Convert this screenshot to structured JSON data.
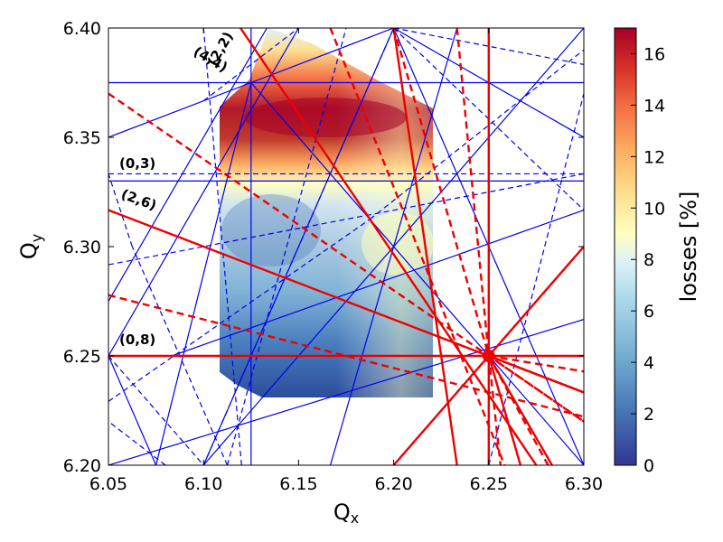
{
  "chart_data": {
    "type": "heatmap",
    "title": "",
    "xlabel": {
      "main": "Q",
      "sub": "x"
    },
    "ylabel": {
      "main": "Q",
      "sub": "y"
    },
    "xlim": [
      6.05,
      6.3
    ],
    "ylim": [
      6.2,
      6.4
    ],
    "xticks": [
      "6.05",
      "6.10",
      "6.15",
      "6.20",
      "6.25",
      "6.30"
    ],
    "yticks": [
      "6.20",
      "6.25",
      "6.30",
      "6.35",
      "6.40"
    ],
    "colorbar": {
      "label": "losses [%]",
      "range": [
        0,
        17
      ],
      "ticks": [
        "0",
        "2",
        "4",
        "6",
        "8",
        "10",
        "12",
        "14",
        "16"
      ]
    },
    "annotations": [
      "(2,2)",
      "(4,4)",
      "(0,3)",
      "(2,6)",
      "(0,8)"
    ],
    "working_point": {
      "qx": 6.25,
      "qy": 6.25
    },
    "resonance_lines": {
      "red_solid": [
        [
          [
            6.05,
            6.25
          ],
          [
            6.3,
            6.25
          ]
        ],
        [
          [
            6.25,
            6.2
          ],
          [
            6.25,
            6.4
          ]
        ],
        [
          [
            6.05,
            6.3167
          ],
          [
            6.3,
            6.2333
          ]
        ],
        [
          [
            6.1,
            6.425
          ],
          [
            6.275,
            6.2
          ]
        ],
        [
          [
            6.2,
            6.2
          ],
          [
            6.3,
            6.3
          ]
        ],
        [
          [
            6.2,
            6.4
          ],
          [
            6.2333,
            6.2
          ]
        ],
        [
          [
            6.25,
            6.25
          ],
          [
            6.2667,
            6.2
          ]
        ],
        [
          [
            6.25,
            6.25
          ],
          [
            6.2833,
            6.2
          ]
        ],
        [
          [
            6.25,
            6.25
          ],
          [
            6.3,
            6.2333
          ]
        ]
      ],
      "red_dashed": [
        [
          [
            6.05,
            6.37
          ],
          [
            6.3,
            6.22
          ]
        ],
        [
          [
            6.05,
            6.2778
          ],
          [
            6.3,
            6.2222
          ]
        ],
        [
          [
            6.1667,
            6.4
          ],
          [
            6.2583,
            6.2
          ]
        ],
        [
          [
            6.2,
            6.4
          ],
          [
            6.25,
            6.25
          ]
        ],
        [
          [
            6.2333,
            6.4
          ],
          [
            6.25,
            6.25
          ]
        ],
        [
          [
            6.25,
            6.25
          ],
          [
            6.2562,
            6.2
          ]
        ],
        [
          [
            6.25,
            6.25
          ],
          [
            6.2812,
            6.2
          ]
        ],
        [
          [
            6.25,
            6.25
          ],
          [
            6.3,
            6.2429
          ]
        ],
        [
          [
            6.25,
            6.25
          ],
          [
            6.3,
            6.22
          ]
        ]
      ],
      "blue_solid": [
        [
          [
            6.05,
            6.375
          ],
          [
            6.3,
            6.375
          ]
        ],
        [
          [
            6.125,
            6.2
          ],
          [
            6.125,
            6.4
          ]
        ],
        [
          [
            6.05,
            6.275
          ],
          [
            6.15,
            6.425
          ]
        ],
        [
          [
            6.1,
            6.2
          ],
          [
            6.2,
            6.4
          ]
        ],
        [
          [
            6.05,
            6.35
          ],
          [
            6.125,
            6.375
          ]
        ],
        [
          [
            6.075,
            6.2
          ],
          [
            6.05,
            6.25
          ]
        ],
        [
          [
            6.075,
            6.2
          ],
          [
            6.125,
            6.375
          ]
        ],
        [
          [
            6.05,
            6.33
          ],
          [
            6.3,
            6.33
          ]
        ],
        [
          [
            6.125,
            6.375
          ],
          [
            6.3,
            6.2
          ]
        ],
        [
          [
            6.05,
            6.25
          ],
          [
            6.25,
            6.25
          ]
        ],
        [
          [
            6.2,
            6.4
          ],
          [
            6.3,
            6.35
          ]
        ],
        [
          [
            6.05,
            6.2
          ],
          [
            6.3,
            6.2667
          ]
        ],
        [
          [
            6.0833,
            6.25
          ],
          [
            6.3,
            6.3167
          ]
        ],
        [
          [
            6.1,
            6.2
          ],
          [
            6.3,
            6.4
          ]
        ],
        [
          [
            6.05,
            6.25
          ],
          [
            6.15,
            6.4
          ]
        ],
        [
          [
            6.125,
            6.375
          ],
          [
            6.2,
            6.4
          ]
        ],
        [
          [
            6.1667,
            6.2
          ],
          [
            6.2333,
            6.4
          ]
        ],
        [
          [
            6.2,
            6.4
          ],
          [
            6.3,
            6.2
          ]
        ]
      ],
      "blue_dashed": [
        [
          [
            6.05,
            6.3333
          ],
          [
            6.3,
            6.3333
          ]
        ],
        [
          [
            6.05,
            6.2917
          ],
          [
            6.3,
            6.3333
          ]
        ],
        [
          [
            6.05,
            6.2292
          ],
          [
            6.1875,
            6.3125
          ]
        ],
        [
          [
            6.1875,
            6.3125
          ],
          [
            6.3,
            6.39
          ]
        ],
        [
          [
            6.1,
            6.2
          ],
          [
            6.2,
            6.4
          ]
        ],
        [
          [
            6.1125,
            6.2
          ],
          [
            6.0625,
            6.3
          ]
        ],
        [
          [
            6.0625,
            6.3
          ],
          [
            6.05,
            6.3333
          ]
        ],
        [
          [
            6.1125,
            6.2
          ],
          [
            6.175,
            6.4
          ]
        ],
        [
          [
            6.1,
            6.4
          ],
          [
            6.1,
            6.4
          ]
        ],
        [
          [
            6.2,
            6.4
          ],
          [
            6.3,
            6.3833
          ]
        ],
        [
          [
            6.2,
            6.4
          ],
          [
            6.3,
            6.3167
          ]
        ],
        [
          [
            6.25,
            6.2
          ],
          [
            6.3,
            6.37
          ]
        ],
        [
          [
            6.05,
            6.2
          ],
          [
            6.05,
            6.2
          ]
        ],
        [
          [
            6.08,
            6.2
          ],
          [
            6.05,
            6.22
          ]
        ],
        [
          [
            6.05,
            6.25
          ],
          [
            6.1,
            6.2
          ]
        ],
        [
          [
            6.1,
            6.3667
          ],
          [
            6.15,
            6.4
          ]
        ],
        [
          [
            6.12,
            6.2
          ],
          [
            6.1,
            6.4
          ]
        ],
        [
          [
            6.1875,
            6.3125
          ],
          [
            6.1875,
            6.3125
          ]
        ]
      ]
    }
  }
}
